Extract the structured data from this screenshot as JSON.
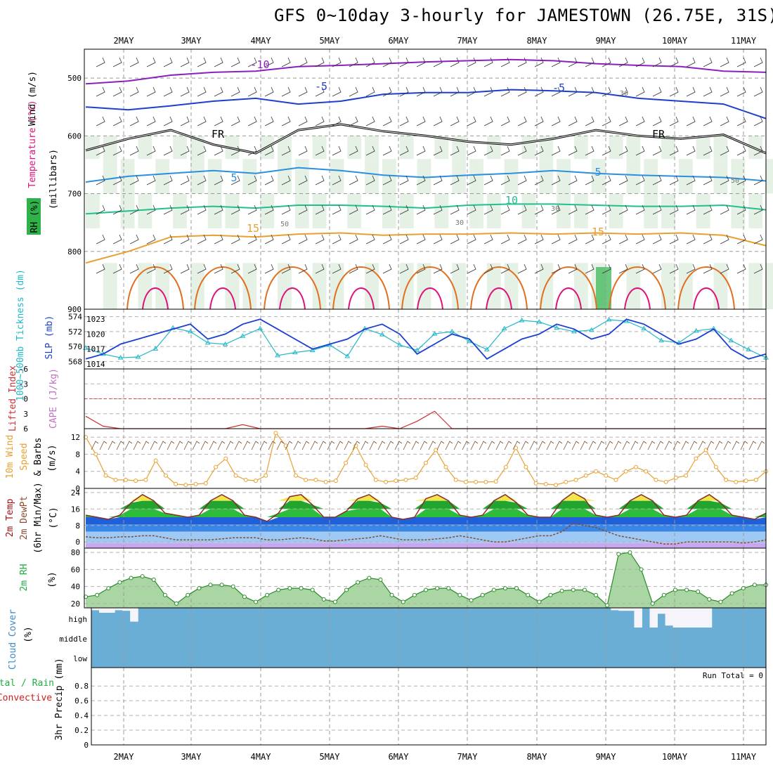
{
  "title": "GFS 0~10day 3-hourly for JAMESTOWN (26.75E, 31S)",
  "colors": {
    "purple": "#8b1fbf",
    "blue": "#1c3fd0",
    "light_blue": "#2a8fe0",
    "teal": "#20c090",
    "orange": "#e8a030",
    "dark_orange": "#e07020",
    "magenta": "#e0107a",
    "cyan": "#20b8c8",
    "green": "#1fb040",
    "cloud": "#6aaed6"
  },
  "chart_data": [
    {
      "type": "line",
      "panel": "upper-air",
      "title": "Temperature (°C) / Wind (m/s) / RH (%)",
      "ylabel": "(millibars)",
      "ylabel_parts": [
        "Wind (m/s)",
        "Temperature (°C)",
        "RH (%)",
        "(millibars)"
      ],
      "yticks": [
        500,
        600,
        700,
        800,
        900
      ],
      "ylim": [
        450,
        900
      ],
      "x_dates": [
        "2MAY",
        "3MAY",
        "4MAY",
        "5MAY",
        "6MAY",
        "7MAY",
        "8MAY",
        "9MAY",
        "10MAY",
        "11MAY"
      ],
      "contour_labels": [
        "-10",
        "-5",
        "-5",
        "FR",
        "FR",
        "5",
        "5",
        "10",
        "15",
        "15",
        "30",
        "30",
        "30",
        "50",
        "50"
      ],
      "isotherms": [
        {
          "name": "-10",
          "color": "#8b1fbf",
          "level_mb": [
            510,
            505,
            495,
            490,
            488,
            480,
            478,
            475,
            472,
            470,
            468,
            470,
            475,
            478,
            480,
            488,
            490
          ]
        },
        {
          "name": "-5",
          "color": "#1c3fd0",
          "level_mb": [
            550,
            555,
            548,
            540,
            535,
            545,
            540,
            528,
            525,
            525,
            520,
            522,
            525,
            535,
            540,
            545,
            570
          ]
        },
        {
          "name": "FR",
          "color": "#000000",
          "level_mb": [
            625,
            605,
            590,
            615,
            630,
            590,
            580,
            592,
            600,
            610,
            615,
            605,
            590,
            600,
            605,
            598,
            630
          ]
        },
        {
          "name": "5",
          "color": "#2a8fe0",
          "level_mb": [
            680,
            670,
            665,
            660,
            665,
            655,
            660,
            668,
            672,
            668,
            665,
            660,
            665,
            668,
            670,
            672,
            678
          ]
        },
        {
          "name": "10",
          "color": "#20c090",
          "level_mb": [
            735,
            730,
            725,
            722,
            725,
            720,
            720,
            722,
            725,
            720,
            718,
            718,
            720,
            722,
            722,
            720,
            728
          ]
        },
        {
          "name": "15",
          "color": "#e8a030",
          "level_mb": [
            820,
            800,
            775,
            772,
            775,
            770,
            768,
            772,
            770,
            770,
            768,
            770,
            768,
            770,
            768,
            772,
            790
          ]
        }
      ]
    },
    {
      "type": "line",
      "panel": "thickness-slp",
      "series": [
        {
          "name": "1000-500mb Thickness (dm)",
          "color": "#20b8c8",
          "y_axis": "left",
          "values": [
            569.8,
            569.0,
            568.5,
            568.6,
            569.7,
            572.5,
            572.0,
            570.5,
            570.3,
            571.4,
            572.4,
            568.8,
            569.2,
            569.5,
            570.2,
            568.7,
            572.4,
            571.6,
            570.2,
            569.5,
            571.7,
            572.0,
            570.7,
            569.6,
            572.4,
            573.5,
            573.3,
            572.5,
            572.0,
            572.2,
            573.6,
            573.4,
            572.4,
            570.8,
            570.5,
            572.1,
            572.4,
            570.8,
            569.6,
            568.5
          ]
        },
        {
          "name": "SLP (mb)",
          "color": "#1c3fd0",
          "y_axis": "right",
          "values": [
            1015,
            1016,
            1018,
            1019,
            1020,
            1021,
            1022,
            1019,
            1020,
            1022,
            1023,
            1021,
            1019,
            1017,
            1018,
            1019,
            1021,
            1022,
            1020,
            1016,
            1018,
            1020,
            1019,
            1015,
            1017,
            1019,
            1020,
            1022,
            1021,
            1019,
            1020,
            1023,
            1022,
            1020,
            1018,
            1019,
            1021,
            1017,
            1015,
            1016
          ]
        }
      ],
      "ylabel_left": "1000~500mb Tickness (dm)",
      "ylabel_right": "SLP (mb)",
      "yticks_left": [
        568,
        570,
        572,
        574
      ],
      "yticks_right": [
        1014,
        1017,
        1020,
        1023
      ],
      "ylim_left": [
        567,
        575
      ],
      "ylim_right": [
        1013,
        1025
      ]
    },
    {
      "type": "line",
      "panel": "lifted-index-cape",
      "series": [
        {
          "name": "Lifted Index",
          "color": "#cc3030",
          "values": [
            3.5,
            5.5,
            6,
            6,
            6,
            6,
            6,
            6,
            6,
            5.2,
            6,
            6,
            6,
            6,
            6,
            6,
            6,
            5.5,
            6,
            4.5,
            2.5,
            6,
            6,
            6,
            6,
            6,
            6,
            6,
            6,
            6,
            6,
            6,
            6,
            6,
            6,
            6,
            6,
            6,
            6,
            6
          ]
        }
      ],
      "ylabel": "Lifted Index",
      "ylabel2": "CAPE (J/kg)",
      "yticks": [
        "-6",
        "-3",
        "0",
        "3",
        "6"
      ],
      "ylim": [
        -6,
        6
      ],
      "reference_line": 0
    },
    {
      "type": "line",
      "panel": "10m-wind",
      "series": [
        {
          "name": "10m Wind Speed (m/s)",
          "color": "#e8a030",
          "values": [
            12,
            8,
            3,
            2,
            2,
            1.8,
            2,
            6.5,
            3,
            1,
            0.8,
            1,
            1.2,
            5,
            7,
            3,
            2,
            1.8,
            3,
            13,
            10,
            3,
            2,
            2,
            1.5,
            1.8,
            6,
            10,
            5.5,
            2,
            1.5,
            1.8,
            2,
            2.5,
            6,
            9,
            5,
            2,
            1.5,
            1.5,
            1.5,
            1.6,
            5,
            9.5,
            5,
            1.2,
            1,
            0.8,
            1.5,
            2,
            3,
            4,
            3,
            2,
            4,
            5,
            4,
            2,
            1.5,
            2.5,
            3,
            7,
            9,
            5,
            2,
            1.5,
            1.8,
            2,
            4
          ]
        }
      ],
      "ylabel": "10m Wind Speed & Barbs",
      "yunit": "(m/s)",
      "yticks": [
        "0",
        "4",
        "8",
        "12"
      ],
      "ylim": [
        0,
        14
      ]
    },
    {
      "type": "area",
      "panel": "2m-temp",
      "series": [
        {
          "name": "2m Temp (°C)",
          "color": "#1fb040",
          "values": [
            13,
            12,
            11,
            13,
            19,
            23,
            20,
            14,
            13,
            12,
            13,
            20,
            23,
            20,
            13,
            12,
            10,
            14,
            22,
            23,
            18,
            12,
            12,
            15,
            21,
            23,
            19,
            12,
            11,
            12,
            21,
            23,
            20,
            13,
            12,
            13,
            20,
            23,
            19,
            13,
            12,
            12,
            20,
            24,
            21,
            13,
            12,
            13,
            20,
            23,
            20,
            13,
            12,
            13,
            20,
            23,
            19,
            13,
            12,
            11,
            14
          ]
        },
        {
          "name": "2m DewPt (°C)",
          "color": "#8a4a30",
          "values": [
            2.5,
            2,
            2,
            2.5,
            2.5,
            3,
            3,
            2,
            1,
            1,
            1,
            1,
            1.5,
            2,
            2,
            2,
            1,
            1,
            1.5,
            2,
            1.5,
            0.5,
            0.5,
            1,
            1.5,
            2,
            3,
            2,
            1,
            1,
            1,
            1.5,
            2,
            3,
            2,
            1,
            0,
            0,
            1,
            2,
            3,
            3,
            5,
            9,
            8,
            7,
            5,
            3,
            2,
            1,
            0,
            -1,
            -1,
            0,
            0,
            0,
            0,
            0,
            -0.5,
            0,
            1
          ]
        }
      ],
      "ylabel": "2m Temp 2m DewPt (6hr Min/Max)",
      "yunit": "(°C)",
      "yticks": [
        "0",
        "8",
        "16",
        "24"
      ],
      "ylim": [
        -3,
        26
      ]
    },
    {
      "type": "area",
      "panel": "2m-rh",
      "series": [
        {
          "name": "2m RH (%)",
          "color": "#1fb040",
          "values": [
            28,
            30,
            38,
            45,
            50,
            52,
            48,
            30,
            20,
            30,
            38,
            42,
            42,
            40,
            28,
            22,
            30,
            36,
            38,
            38,
            36,
            25,
            22,
            36,
            45,
            50,
            48,
            30,
            22,
            30,
            36,
            38,
            38,
            30,
            24,
            30,
            36,
            38,
            38,
            30,
            22,
            30,
            35,
            36,
            36,
            30,
            18,
            78,
            80,
            60,
            20,
            30,
            36,
            36,
            34,
            25,
            22,
            32,
            38,
            42,
            42
          ]
        }
      ],
      "ylabel": "2m RH",
      "yunit": "(%)",
      "yticks": [
        "20",
        "40",
        "60",
        "80"
      ],
      "ylim": [
        15,
        85
      ]
    },
    {
      "type": "bar",
      "panel": "cloud-cover",
      "series": [
        {
          "name": "high",
          "color": "#ffffff",
          "values": [
            0.12,
            0.25,
            0.25,
            0.12,
            0.15,
            0.7,
            0,
            0,
            0,
            0,
            0,
            0,
            0,
            0,
            0,
            0,
            0,
            0,
            0,
            0,
            0,
            0,
            0,
            0,
            0,
            0,
            0,
            0,
            0,
            0,
            0,
            0,
            0,
            0,
            0,
            0,
            0,
            0,
            0,
            0,
            0,
            0,
            0,
            0,
            0,
            0,
            0,
            0,
            0,
            0,
            0,
            0,
            0,
            0,
            0,
            0,
            0,
            0,
            0,
            0,
            0,
            0,
            0,
            0,
            0,
            0,
            0,
            0.12,
            0.15,
            0.15,
            1,
            0,
            1,
            0.3,
            0.9,
            1,
            1,
            1,
            1,
            1,
            0,
            0,
            0,
            0,
            0,
            0,
            0
          ]
        }
      ],
      "ylabel": "Cloud Cover",
      "yunit": "(%)",
      "yticks": [
        "high",
        "middle",
        "low"
      ]
    },
    {
      "type": "bar",
      "panel": "precip",
      "ylabel": "3hr Precip (mm)",
      "legend": [
        "Total / Rain",
        "Convective"
      ],
      "yticks": [
        "0",
        "0.2",
        "0.4",
        "0.6",
        "0.8"
      ],
      "ylim": [
        0,
        1
      ],
      "values": [],
      "annotation": "Run Total = 0"
    }
  ]
}
